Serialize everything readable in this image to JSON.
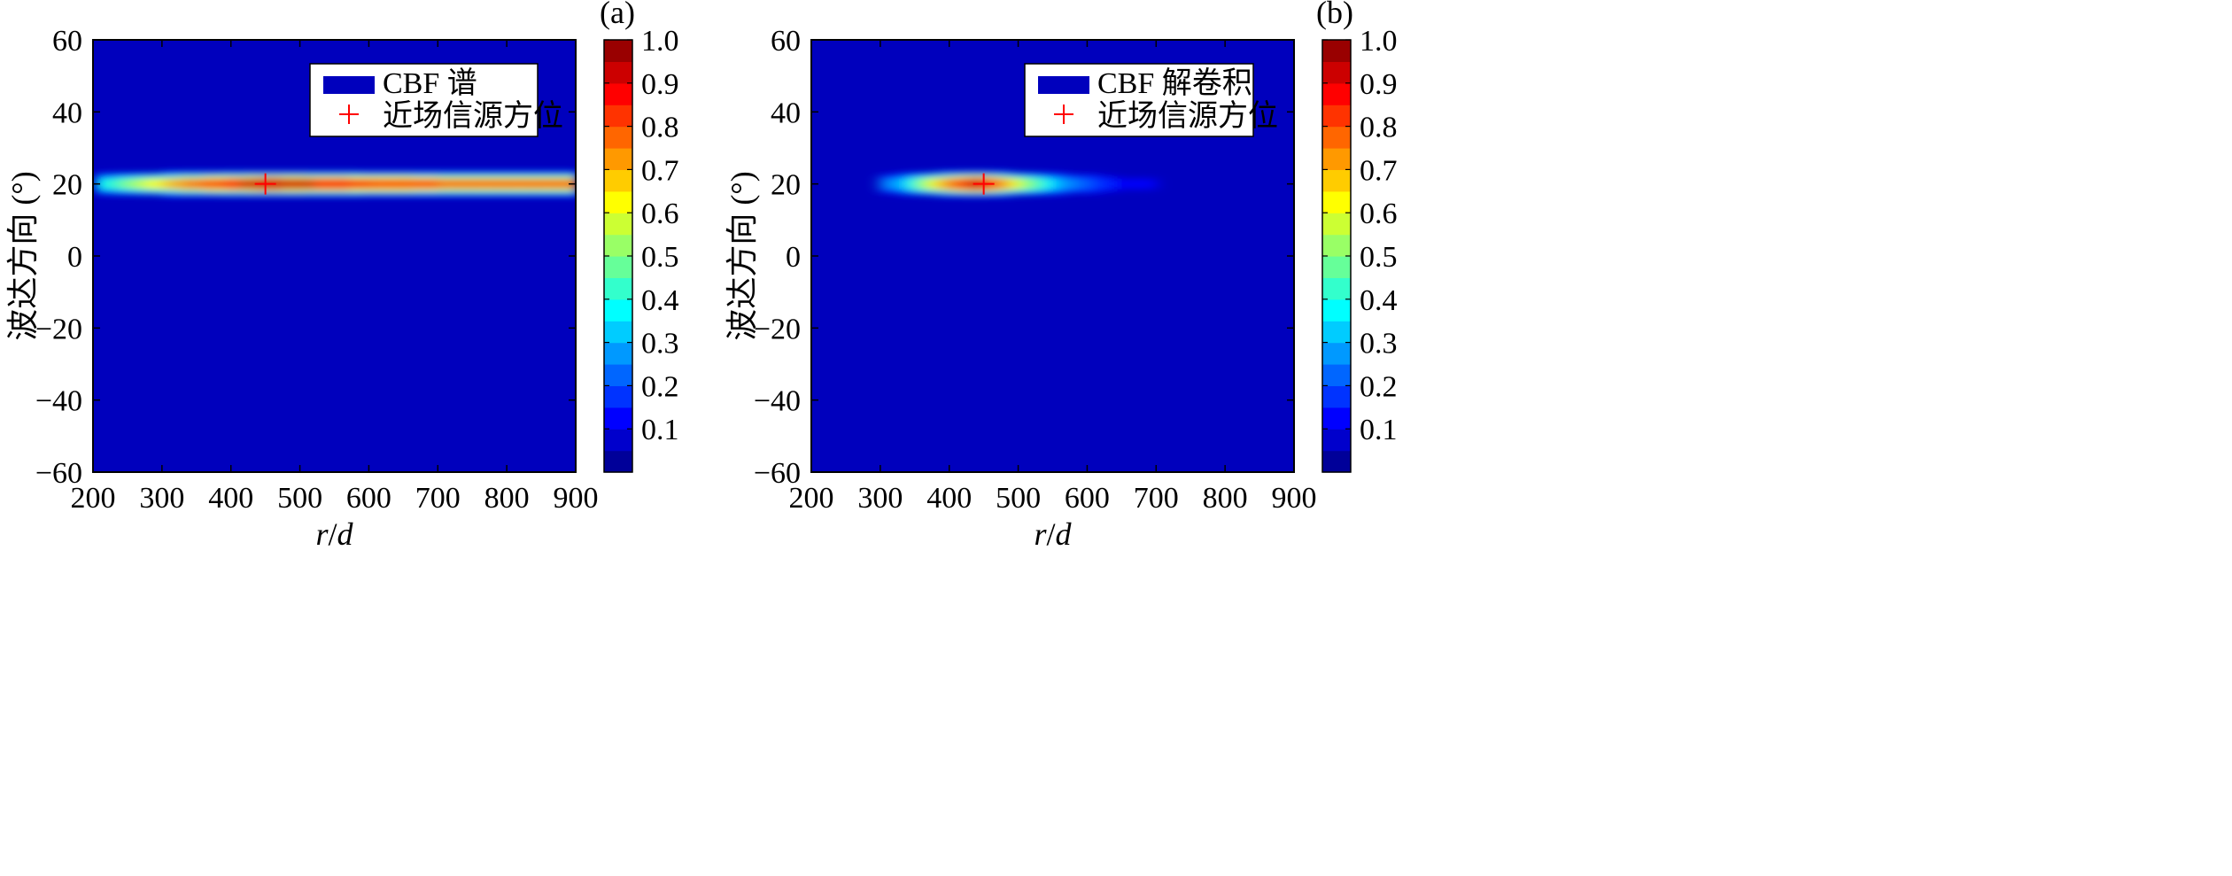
{
  "chart_data": [
    {
      "type": "heatmap",
      "panel_label": "(a)",
      "xlabel": "r/d",
      "xlabel_parts": {
        "var1": "r",
        "sep": "/",
        "var2": "d"
      },
      "ylabel": "波达方向 (°)",
      "xlim": [
        200,
        900
      ],
      "ylim": [
        -60,
        60
      ],
      "xticks": [
        200,
        300,
        400,
        500,
        600,
        700,
        800,
        900
      ],
      "yticks": [
        -60,
        -40,
        -20,
        0,
        20,
        40,
        60
      ],
      "background_value": 0.0,
      "legend": {
        "placement": "top-right",
        "entries": [
          {
            "label": "CBF 谱",
            "marker": "patch"
          },
          {
            "label": "近场信源方位",
            "marker": "+"
          }
        ]
      },
      "source": {
        "x": 450,
        "y": 20,
        "marker": "+",
        "color": "#ff0000"
      },
      "peak_band": {
        "center_y": 20,
        "x_range": [
          205,
          900
        ],
        "peak_x": 450,
        "y_halfwidth_core": 1.3,
        "y_halfwidth_edge": 4,
        "values_along_x": {
          "x": [
            205,
            260,
            320,
            380,
            450,
            520,
            600,
            700,
            800,
            900
          ],
          "value": [
            0.35,
            0.55,
            0.72,
            0.85,
            0.95,
            0.9,
            0.85,
            0.8,
            0.78,
            0.75
          ]
        }
      }
    },
    {
      "type": "heatmap",
      "panel_label": "(b)",
      "xlabel": "r/d",
      "xlabel_parts": {
        "var1": "r",
        "sep": "/",
        "var2": "d"
      },
      "ylabel": "波达方向 (°)",
      "xlim": [
        200,
        900
      ],
      "ylim": [
        -60,
        60
      ],
      "xticks": [
        200,
        300,
        400,
        500,
        600,
        700,
        800,
        900
      ],
      "yticks": [
        -60,
        -40,
        -20,
        0,
        20,
        40,
        60
      ],
      "background_value": 0.0,
      "legend": {
        "placement": "top-right",
        "entries": [
          {
            "label": "CBF 解卷积",
            "marker": "patch"
          },
          {
            "label": "近场信源方位",
            "marker": "+"
          }
        ]
      },
      "source": {
        "x": 450,
        "y": 20,
        "marker": "+",
        "color": "#ff0000"
      },
      "peak_band": {
        "center_y": 20,
        "x_range": [
          300,
          860
        ],
        "peak_x": 440,
        "y_halfwidth_core": 1.5,
        "y_halfwidth_edge": 4,
        "values_along_x": {
          "x": [
            320,
            380,
            440,
            500,
            560,
            650,
            750,
            860
          ],
          "value": [
            0.25,
            0.65,
            0.95,
            0.6,
            0.3,
            0.12,
            0.08,
            0.05
          ]
        }
      }
    }
  ],
  "colorbar": {
    "ticks": [
      0.1,
      0.2,
      0.3,
      0.4,
      0.5,
      0.6,
      0.7,
      0.8,
      0.9,
      1.0
    ],
    "tick_labels": [
      "0.1",
      "0.2",
      "0.3",
      "0.4",
      "0.5",
      "0.6",
      "0.7",
      "0.8",
      "0.9",
      "1.0"
    ],
    "range": [
      0,
      1
    ],
    "levels": 20,
    "colormap": "jet"
  }
}
